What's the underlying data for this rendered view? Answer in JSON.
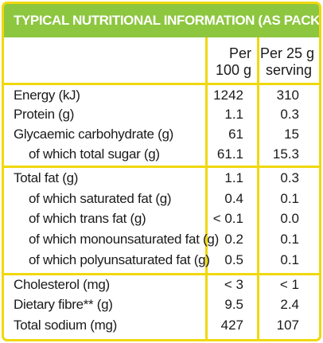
{
  "title": "TYPICAL NUTRITIONAL INFORMATION (AS PACKED)",
  "columns": {
    "per100_line1": "Per",
    "per100_line2": "100 g",
    "serving_line1": "Per 25 g",
    "serving_line2": "serving"
  },
  "rows": [
    {
      "label": "Energy (kJ)",
      "per100": "1242",
      "serving": "310",
      "sub": false
    },
    {
      "label": "Protein (g)",
      "per100": "1.1",
      "serving": "0.3",
      "sub": false
    },
    {
      "label": "Glycaemic carbohydrate (g)",
      "per100": "61",
      "serving": "15",
      "sub": false
    },
    {
      "label": "of which total sugar (g)",
      "per100": "61.1",
      "serving": "15.3",
      "sub": true
    },
    {
      "label": "Total fat (g)",
      "per100": "1.1",
      "serving": "0.3",
      "sub": false
    },
    {
      "label": "of which saturated fat (g)",
      "per100": "0.4",
      "serving": "0.1",
      "sub": true
    },
    {
      "label": "of which trans fat (g)",
      "per100": "< 0.1",
      "serving": "0.0",
      "sub": true
    },
    {
      "label": "of which monounsaturated fat (g)",
      "per100": "0.2",
      "serving": "0.1",
      "sub": true
    },
    {
      "label": "of which polyunsaturated fat (g)",
      "per100": "0.5",
      "serving": "0.1",
      "sub": true
    },
    {
      "label": "Cholesterol (mg)",
      "per100": "< 3",
      "serving": "< 1",
      "sub": false
    },
    {
      "label": "Dietary fibre** (g)",
      "per100": "9.5",
      "serving": "2.4",
      "sub": false
    },
    {
      "label": "Total sodium (mg)",
      "per100": "427",
      "serving": "107",
      "sub": false
    }
  ],
  "colors": {
    "header_bg": "#8dc63f",
    "border": "#f0d80c",
    "text": "#1a1a1a"
  }
}
